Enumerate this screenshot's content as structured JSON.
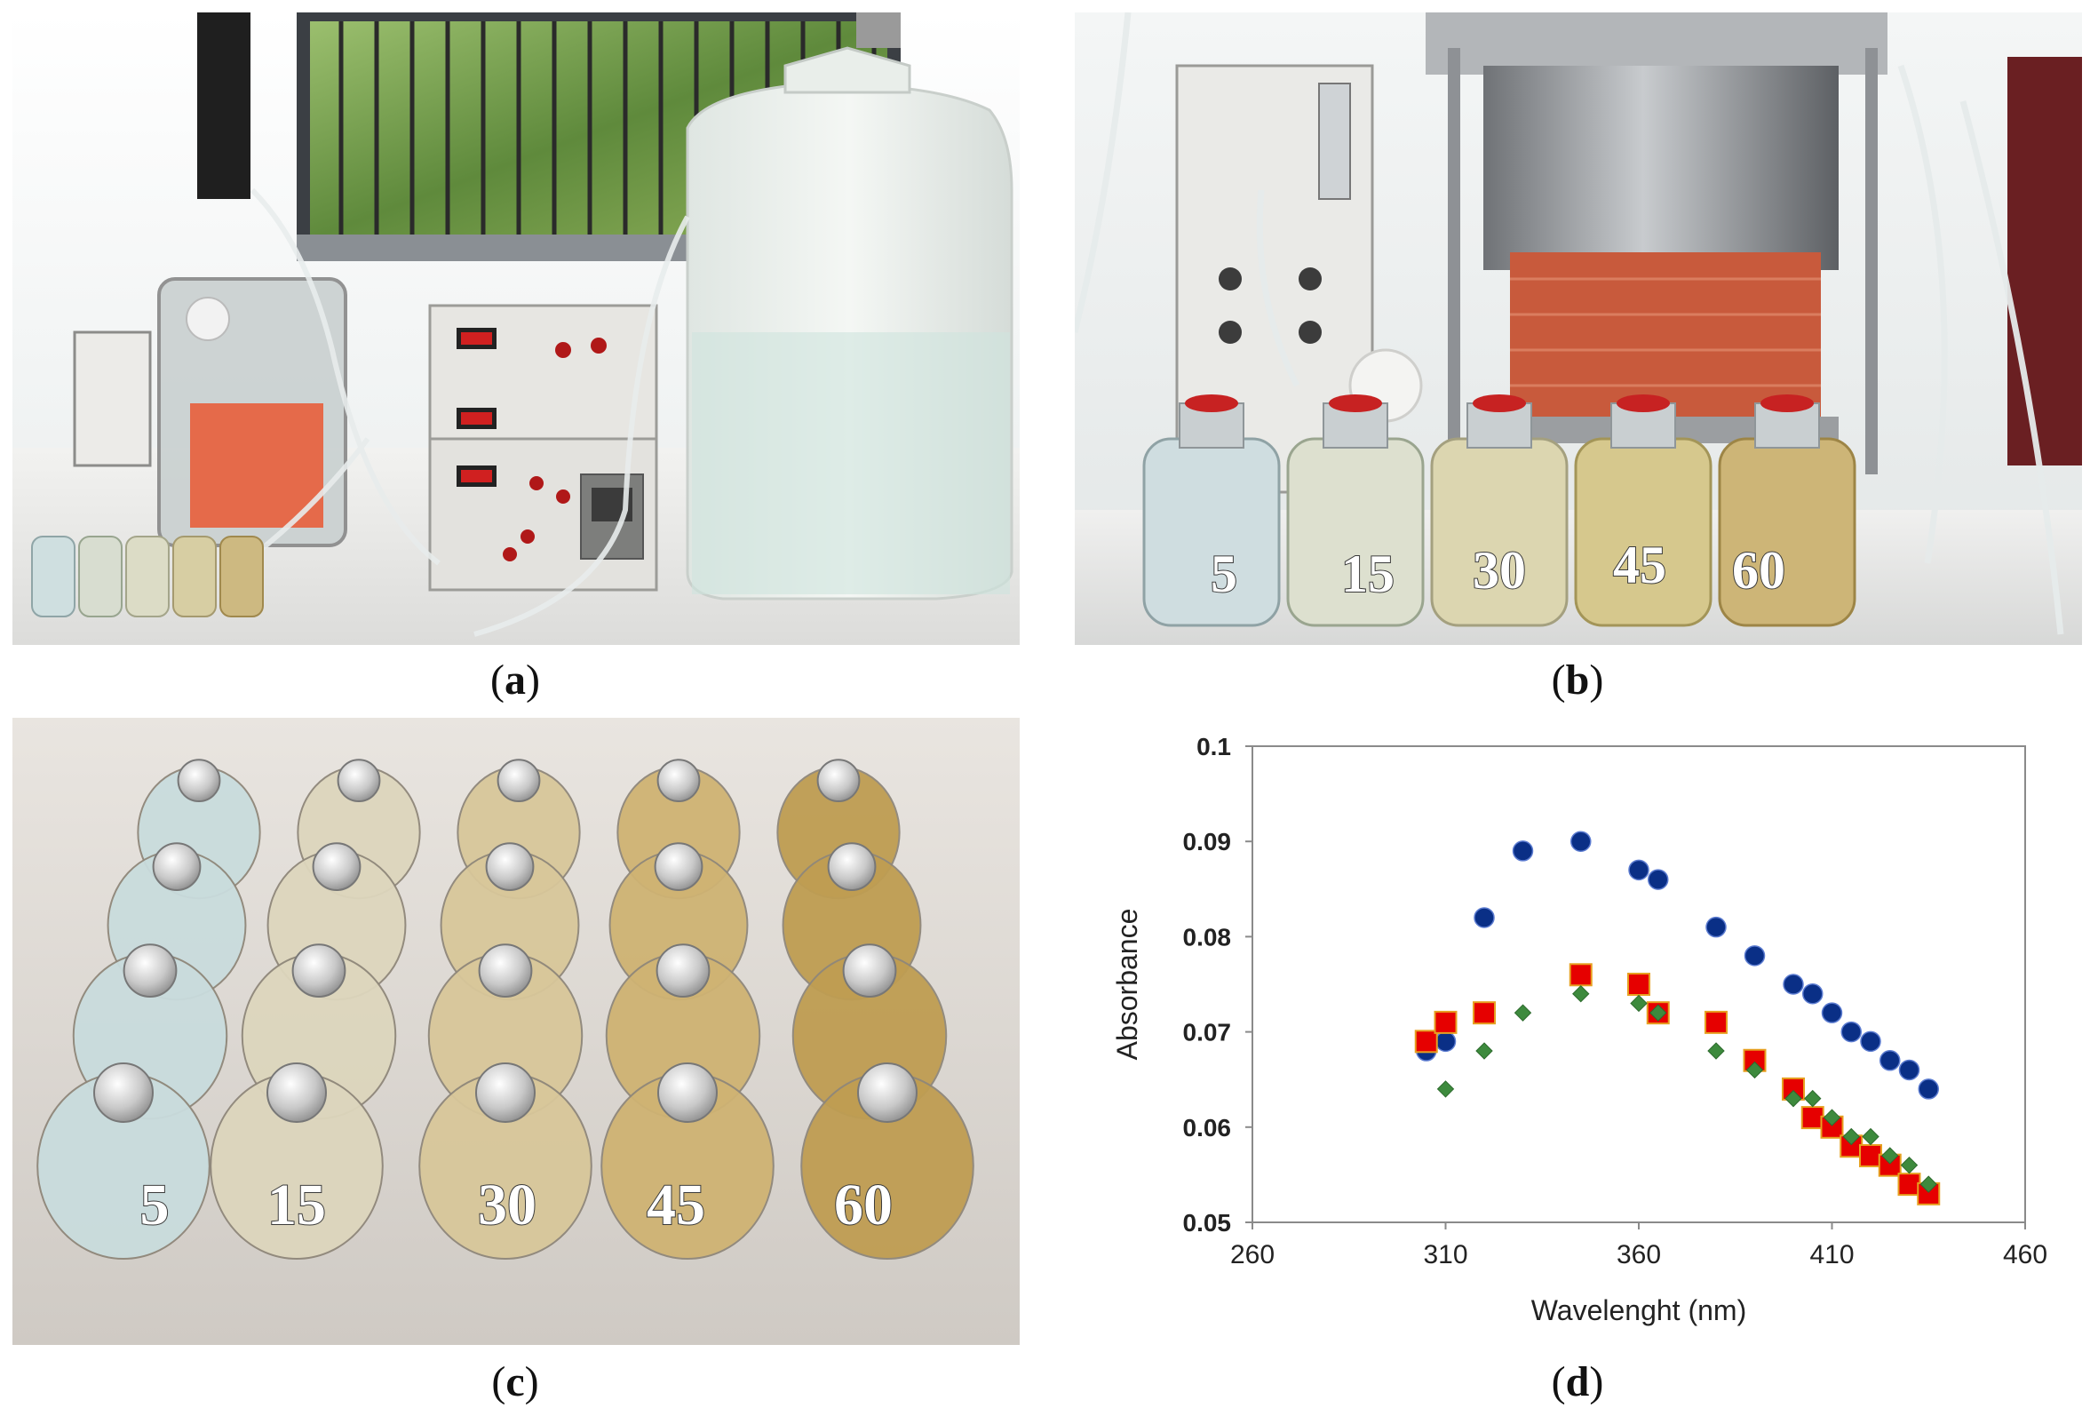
{
  "panels": {
    "a": {
      "caption": "a"
    },
    "b": {
      "caption": "b",
      "bottle_labels": [
        "5",
        "15",
        "30",
        "45",
        "60"
      ]
    },
    "c": {
      "caption": "c",
      "bottle_labels": [
        "5",
        "15",
        "30",
        "45",
        "60"
      ]
    },
    "d": {
      "caption": "d"
    }
  },
  "colors": {
    "series_circle": "#0a2f86",
    "series_square": "#e60000",
    "series_square_edge": "#e6a020",
    "series_diamond": "#3d8a3d"
  },
  "chart_data": {
    "type": "scatter",
    "title": "",
    "xlabel": "Wavelenght (nm)",
    "ylabel": "Absorbance",
    "xlim": [
      260,
      460
    ],
    "ylim": [
      0.05,
      0.1
    ],
    "xticks": [
      "260",
      "310",
      "360",
      "410",
      "460"
    ],
    "yticks": [
      "0.05",
      "0.06",
      "0.07",
      "0.08",
      "0.09",
      "0.1"
    ],
    "grid": false,
    "legend": "none",
    "series": [
      {
        "marker": "circle",
        "x": [
          305,
          310,
          320,
          330,
          345,
          360,
          365,
          380,
          390,
          400,
          405,
          410,
          415,
          420,
          425,
          430,
          435
        ],
        "y": [
          0.068,
          0.069,
          0.082,
          0.089,
          0.09,
          0.087,
          0.086,
          0.081,
          0.078,
          0.075,
          0.074,
          0.072,
          0.07,
          0.069,
          0.067,
          0.066,
          0.064
        ]
      },
      {
        "marker": "square",
        "x": [
          305,
          310,
          320,
          345,
          360,
          365,
          380,
          390,
          400,
          405,
          410,
          415,
          420,
          425,
          430,
          435
        ],
        "y": [
          0.069,
          0.071,
          0.072,
          0.076,
          0.075,
          0.072,
          0.071,
          0.067,
          0.064,
          0.061,
          0.06,
          0.058,
          0.057,
          0.056,
          0.054,
          0.053
        ]
      },
      {
        "marker": "diamond",
        "x": [
          310,
          320,
          330,
          345,
          360,
          365,
          380,
          390,
          400,
          405,
          410,
          415,
          420,
          425,
          430,
          435
        ],
        "y": [
          0.064,
          0.068,
          0.072,
          0.074,
          0.073,
          0.072,
          0.068,
          0.066,
          0.063,
          0.063,
          0.061,
          0.059,
          0.059,
          0.057,
          0.056,
          0.054
        ]
      }
    ]
  }
}
